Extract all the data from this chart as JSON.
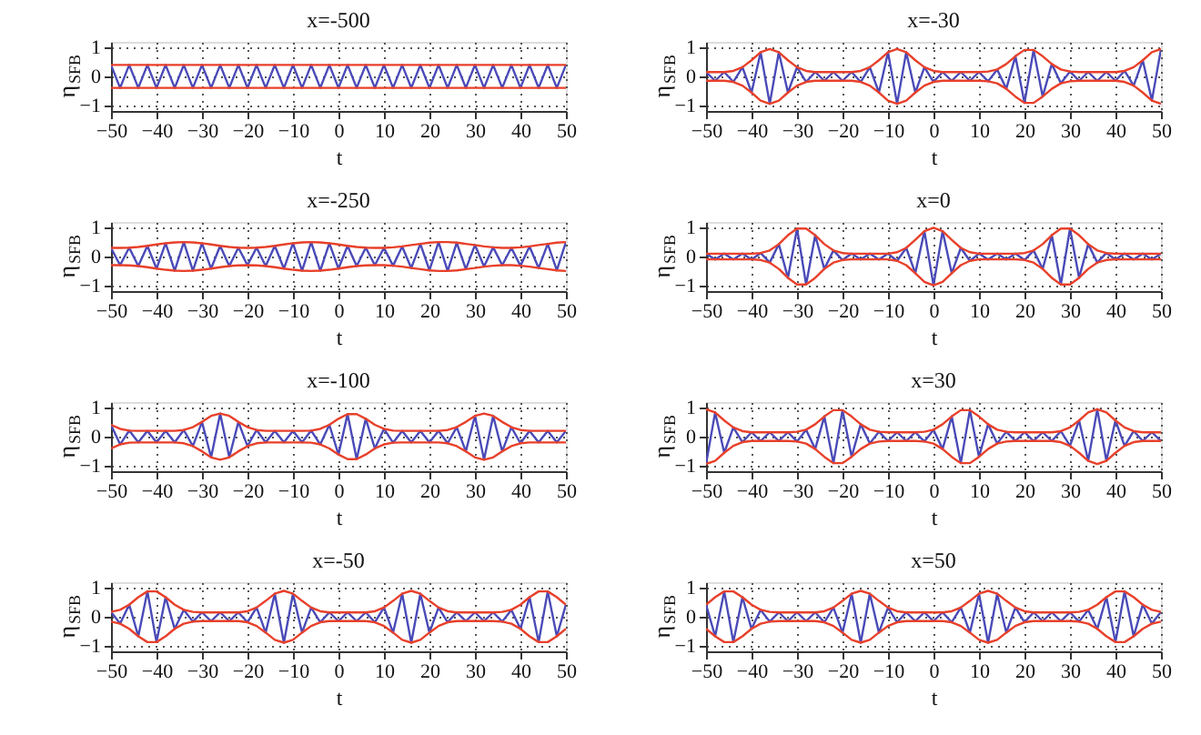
{
  "chart_data": [
    {
      "type": "line",
      "title": "x=-500",
      "xlabel": "t",
      "ylabel": "η$_{SFB}$",
      "xlim": [
        -50,
        50
      ],
      "xticks": [
        -50,
        -40,
        -30,
        -20,
        -10,
        0,
        10,
        20,
        30,
        40,
        50
      ],
      "ylim": [
        -1.2,
        1.2
      ],
      "yticks": [
        -1,
        0,
        1
      ],
      "grid": true,
      "legend": false,
      "x": [
        -50,
        -48,
        -46,
        -44,
        -42,
        -40,
        -38,
        -36,
        -34,
        -32,
        -30,
        -28,
        -26,
        -24,
        -22,
        -20,
        -18,
        -16,
        -14,
        -12,
        -10,
        -8,
        -6,
        -4,
        -2,
        0,
        2,
        4,
        6,
        8,
        10,
        12,
        14,
        16,
        18,
        20,
        22,
        24,
        26,
        28,
        30,
        32,
        34,
        36,
        38,
        40,
        42,
        44,
        46,
        48,
        50
      ],
      "series": [
        {
          "color": "#4a4ab8",
          "values": [
            0.4,
            -0.4,
            0.4,
            -0.4,
            0.4,
            -0.4,
            0.4,
            -0.4,
            0.4,
            -0.4,
            0.4,
            -0.4,
            0.4,
            -0.4,
            0.4,
            -0.4,
            0.4,
            -0.4,
            0.4,
            -0.4,
            0.4,
            -0.4,
            0.4,
            -0.4,
            0.4,
            -0.4,
            0.4,
            -0.4,
            0.4,
            -0.4,
            0.4,
            -0.4,
            0.4,
            -0.4,
            0.4,
            -0.4,
            0.4,
            -0.4,
            0.4,
            -0.4,
            0.4,
            -0.4,
            0.4,
            -0.4,
            0.4,
            -0.4,
            0.4,
            -0.4,
            0.4,
            -0.4,
            0.4
          ]
        },
        {
          "color": "#e8402a",
          "values": [
            0.4,
            0.4,
            0.4,
            0.4,
            0.4,
            0.4,
            0.4,
            0.4,
            0.4,
            0.4,
            0.4,
            0.4,
            0.4,
            0.4,
            0.4,
            0.4,
            0.4,
            0.4,
            0.4,
            0.4,
            0.4,
            0.4,
            0.4,
            0.4,
            0.4,
            0.4,
            0.4,
            0.4,
            0.4,
            0.4,
            0.4,
            0.4,
            0.4,
            0.4,
            0.4,
            0.4,
            0.4,
            0.4,
            0.4,
            0.4,
            0.4,
            0.4,
            0.4,
            0.4,
            0.4,
            0.4,
            0.4,
            0.4,
            0.4,
            0.4,
            0.4
          ]
        },
        {
          "color": "#e8402a",
          "values": [
            -0.4,
            -0.4,
            -0.4,
            -0.4,
            -0.4,
            -0.4,
            -0.4,
            -0.4,
            -0.4,
            -0.4,
            -0.4,
            -0.4,
            -0.4,
            -0.4,
            -0.4,
            -0.4,
            -0.4,
            -0.4,
            -0.4,
            -0.4,
            -0.4,
            -0.4,
            -0.4,
            -0.4,
            -0.4,
            -0.4,
            -0.4,
            -0.4,
            -0.4,
            -0.4,
            -0.4,
            -0.4,
            -0.4,
            -0.4,
            -0.4,
            -0.4,
            -0.4,
            -0.4,
            -0.4,
            -0.4,
            -0.4,
            -0.4,
            -0.4,
            -0.4,
            -0.4,
            -0.4,
            -0.4,
            -0.4,
            -0.4,
            -0.4,
            -0.4
          ]
        }
      ]
    },
    {
      "type": "line",
      "title": "x=-30",
      "xlabel": "t",
      "ylabel": "η$_{SFB}$",
      "xlim": [
        -50,
        50
      ],
      "xticks": [
        -50,
        -40,
        -30,
        -20,
        -10,
        0,
        10,
        20,
        30,
        40,
        50
      ],
      "ylim": [
        -1.2,
        1.2
      ],
      "yticks": [
        -1,
        0,
        1
      ],
      "grid": true,
      "legend": false,
      "x": [
        -50,
        -48,
        -46,
        -44,
        -42,
        -40,
        -38,
        -36,
        -34,
        -32,
        -30,
        -28,
        -26,
        -24,
        -22,
        -20,
        -18,
        -16,
        -14,
        -12,
        -10,
        -8,
        -6,
        -4,
        -2,
        0,
        2,
        4,
        6,
        8,
        10,
        12,
        14,
        16,
        18,
        20,
        22,
        24,
        26,
        28,
        30,
        32,
        34,
        36,
        38,
        40,
        42,
        44,
        46,
        48,
        50
      ],
      "series": [
        {
          "color": "#4a4ab8",
          "values": [
            0.15,
            -0.15,
            0.15,
            -0.19,
            0.32,
            -0.56,
            0.84,
            -0.95,
            0.84,
            -0.56,
            0.32,
            -0.19,
            0.15,
            -0.15,
            0.15,
            -0.15,
            0.15,
            -0.19,
            0.32,
            -0.56,
            0.84,
            -0.95,
            0.84,
            -0.56,
            0.32,
            -0.19,
            0.15,
            -0.15,
            0.15,
            -0.15,
            0.15,
            -0.17,
            0.24,
            -0.43,
            0.7,
            -0.92,
            0.92,
            -0.7,
            0.43,
            -0.24,
            0.17,
            -0.15,
            0.15,
            -0.15,
            0.15,
            -0.15,
            0.19,
            -0.32,
            0.56,
            -0.84,
            0.95
          ]
        },
        {
          "color": "#e8402a",
          "values": [
            0.15,
            0.15,
            0.15,
            0.19,
            0.32,
            0.56,
            0.84,
            0.95,
            0.84,
            0.56,
            0.32,
            0.19,
            0.15,
            0.15,
            0.15,
            0.15,
            0.15,
            0.19,
            0.32,
            0.56,
            0.84,
            0.95,
            0.84,
            0.56,
            0.32,
            0.19,
            0.15,
            0.15,
            0.15,
            0.15,
            0.15,
            0.17,
            0.24,
            0.43,
            0.7,
            0.92,
            0.92,
            0.7,
            0.43,
            0.24,
            0.17,
            0.15,
            0.15,
            0.15,
            0.15,
            0.15,
            0.19,
            0.32,
            0.56,
            0.84,
            0.95
          ]
        },
        {
          "color": "#e8402a",
          "values": [
            -0.15,
            -0.15,
            -0.15,
            -0.19,
            -0.32,
            -0.56,
            -0.84,
            -0.95,
            -0.84,
            -0.56,
            -0.32,
            -0.19,
            -0.15,
            -0.15,
            -0.15,
            -0.15,
            -0.15,
            -0.19,
            -0.32,
            -0.56,
            -0.84,
            -0.95,
            -0.84,
            -0.56,
            -0.32,
            -0.19,
            -0.15,
            -0.15,
            -0.15,
            -0.15,
            -0.15,
            -0.17,
            -0.24,
            -0.43,
            -0.7,
            -0.92,
            -0.92,
            -0.7,
            -0.43,
            -0.24,
            -0.17,
            -0.15,
            -0.15,
            -0.15,
            -0.15,
            -0.15,
            -0.19,
            -0.32,
            -0.56,
            -0.84,
            -0.95
          ]
        }
      ]
    },
    {
      "type": "line",
      "title": "x=-250",
      "xlabel": "t",
      "ylabel": "η$_{SFB}$",
      "xlim": [
        -50,
        50
      ],
      "xticks": [
        -50,
        -40,
        -30,
        -20,
        -10,
        0,
        10,
        20,
        30,
        40,
        50
      ],
      "ylim": [
        -1.2,
        1.2
      ],
      "yticks": [
        -1,
        0,
        1
      ],
      "grid": true,
      "legend": false,
      "x": [
        -50,
        -48,
        -46,
        -44,
        -42,
        -40,
        -38,
        -36,
        -34,
        -32,
        -30,
        -28,
        -26,
        -24,
        -22,
        -20,
        -18,
        -16,
        -14,
        -12,
        -10,
        -8,
        -6,
        -4,
        -2,
        0,
        2,
        4,
        6,
        8,
        10,
        12,
        14,
        16,
        18,
        20,
        22,
        24,
        26,
        28,
        30,
        32,
        34,
        36,
        38,
        40,
        42,
        44,
        46,
        48,
        50
      ],
      "series": [
        {
          "color": "#4a4ab8",
          "values": [
            0.3,
            -0.3,
            0.31,
            -0.33,
            0.37,
            -0.42,
            0.46,
            -0.49,
            0.5,
            -0.49,
            0.46,
            -0.42,
            0.37,
            -0.33,
            0.31,
            -0.3,
            0.31,
            -0.33,
            0.37,
            -0.42,
            0.46,
            -0.49,
            0.5,
            -0.49,
            0.46,
            -0.42,
            0.37,
            -0.33,
            0.31,
            -0.3,
            0.3,
            -0.32,
            0.35,
            -0.4,
            0.44,
            -0.48,
            0.5,
            -0.5,
            0.48,
            -0.44,
            0.4,
            -0.35,
            0.32,
            -0.3,
            0.3,
            -0.32,
            0.35,
            -0.4,
            0.44,
            -0.48,
            0.5
          ]
        },
        {
          "color": "#e8402a",
          "values": [
            0.3,
            0.3,
            0.31,
            0.33,
            0.37,
            0.42,
            0.46,
            0.49,
            0.5,
            0.49,
            0.46,
            0.42,
            0.37,
            0.33,
            0.31,
            0.3,
            0.31,
            0.33,
            0.37,
            0.42,
            0.46,
            0.49,
            0.5,
            0.49,
            0.46,
            0.42,
            0.37,
            0.33,
            0.31,
            0.3,
            0.3,
            0.32,
            0.35,
            0.4,
            0.44,
            0.48,
            0.5,
            0.5,
            0.48,
            0.44,
            0.4,
            0.35,
            0.32,
            0.3,
            0.3,
            0.32,
            0.35,
            0.4,
            0.44,
            0.48,
            0.5
          ]
        },
        {
          "color": "#e8402a",
          "values": [
            -0.3,
            -0.3,
            -0.31,
            -0.33,
            -0.37,
            -0.42,
            -0.46,
            -0.49,
            -0.5,
            -0.49,
            -0.46,
            -0.42,
            -0.37,
            -0.33,
            -0.31,
            -0.3,
            -0.31,
            -0.33,
            -0.37,
            -0.42,
            -0.46,
            -0.49,
            -0.5,
            -0.49,
            -0.46,
            -0.42,
            -0.37,
            -0.33,
            -0.31,
            -0.3,
            -0.3,
            -0.32,
            -0.35,
            -0.4,
            -0.44,
            -0.48,
            -0.5,
            -0.5,
            -0.48,
            -0.44,
            -0.4,
            -0.35,
            -0.32,
            -0.3,
            -0.3,
            -0.32,
            -0.35,
            -0.4,
            -0.44,
            -0.48,
            -0.5
          ]
        }
      ]
    },
    {
      "type": "line",
      "title": "x=0",
      "xlabel": "t",
      "ylabel": "η$_{SFB}$",
      "xlim": [
        -50,
        50
      ],
      "xticks": [
        -50,
        -40,
        -30,
        -20,
        -10,
        0,
        10,
        20,
        30,
        40,
        50
      ],
      "ylim": [
        -1.2,
        1.2
      ],
      "yticks": [
        -1,
        0,
        1
      ],
      "grid": true,
      "legend": false,
      "x": [
        -50,
        -48,
        -46,
        -44,
        -42,
        -40,
        -38,
        -36,
        -34,
        -32,
        -30,
        -28,
        -26,
        -24,
        -22,
        -20,
        -18,
        -16,
        -14,
        -12,
        -10,
        -8,
        -6,
        -4,
        -2,
        0,
        2,
        4,
        6,
        8,
        10,
        12,
        14,
        16,
        18,
        20,
        22,
        24,
        26,
        28,
        30,
        32,
        34,
        36,
        38,
        40,
        42,
        44,
        46,
        48,
        50
      ],
      "series": [
        {
          "color": "#4a4ab8",
          "values": [
            0.1,
            -0.1,
            0.1,
            -0.1,
            0.1,
            -0.1,
            0.12,
            -0.21,
            0.43,
            -0.74,
            0.97,
            -0.97,
            0.74,
            -0.43,
            0.21,
            -0.12,
            0.1,
            -0.1,
            0.1,
            -0.1,
            0.1,
            -0.15,
            0.3,
            -0.58,
            0.88,
            -1.0,
            0.88,
            -0.58,
            0.3,
            -0.15,
            0.1,
            -0.1,
            0.1,
            -0.1,
            0.1,
            -0.12,
            0.21,
            -0.43,
            0.74,
            -0.97,
            0.97,
            -0.74,
            0.43,
            -0.21,
            0.12,
            -0.1,
            0.1,
            -0.1,
            0.1,
            -0.1,
            0.1
          ]
        },
        {
          "color": "#e8402a",
          "values": [
            0.1,
            0.1,
            0.1,
            0.1,
            0.1,
            0.1,
            0.12,
            0.21,
            0.43,
            0.74,
            0.97,
            0.97,
            0.74,
            0.43,
            0.21,
            0.12,
            0.1,
            0.1,
            0.1,
            0.1,
            0.1,
            0.15,
            0.3,
            0.58,
            0.88,
            1.0,
            0.88,
            0.58,
            0.3,
            0.15,
            0.1,
            0.1,
            0.1,
            0.1,
            0.1,
            0.12,
            0.21,
            0.43,
            0.74,
            0.97,
            0.97,
            0.74,
            0.43,
            0.21,
            0.12,
            0.1,
            0.1,
            0.1,
            0.1,
            0.1,
            0.1
          ]
        },
        {
          "color": "#e8402a",
          "values": [
            -0.1,
            -0.1,
            -0.1,
            -0.1,
            -0.1,
            -0.1,
            -0.12,
            -0.21,
            -0.43,
            -0.74,
            -0.97,
            -0.97,
            -0.74,
            -0.43,
            -0.21,
            -0.12,
            -0.1,
            -0.1,
            -0.1,
            -0.1,
            -0.1,
            -0.15,
            -0.3,
            -0.58,
            -0.88,
            -1.0,
            -0.88,
            -0.58,
            -0.3,
            -0.15,
            -0.1,
            -0.1,
            -0.1,
            -0.1,
            -0.1,
            -0.12,
            -0.21,
            -0.43,
            -0.74,
            -0.97,
            -0.97,
            -0.74,
            -0.43,
            -0.21,
            -0.12,
            -0.1,
            -0.1,
            -0.1,
            -0.1,
            -0.1,
            -0.1
          ]
        }
      ]
    },
    {
      "type": "line",
      "title": "x=-100",
      "xlabel": "t",
      "ylabel": "η$_{SFB}$",
      "xlim": [
        -50,
        50
      ],
      "xticks": [
        -50,
        -40,
        -30,
        -20,
        -10,
        0,
        10,
        20,
        30,
        40,
        50
      ],
      "ylim": [
        -1.2,
        1.2
      ],
      "yticks": [
        -1,
        0,
        1
      ],
      "grid": true,
      "legend": false,
      "x": [
        -50,
        -48,
        -46,
        -44,
        -42,
        -40,
        -38,
        -36,
        -34,
        -32,
        -30,
        -28,
        -26,
        -24,
        -22,
        -20,
        -18,
        -16,
        -14,
        -12,
        -10,
        -8,
        -6,
        -4,
        -2,
        0,
        2,
        4,
        6,
        8,
        10,
        12,
        14,
        16,
        18,
        20,
        22,
        24,
        26,
        28,
        30,
        32,
        34,
        36,
        38,
        40,
        42,
        44,
        46,
        48,
        50
      ],
      "series": [
        {
          "color": "#4a4ab8",
          "values": [
            0.41,
            -0.27,
            0.21,
            -0.2,
            0.2,
            -0.2,
            0.2,
            -0.2,
            0.23,
            -0.33,
            0.51,
            -0.72,
            0.8,
            -0.72,
            0.51,
            -0.33,
            0.23,
            -0.2,
            0.2,
            -0.2,
            0.2,
            -0.2,
            0.21,
            -0.27,
            0.41,
            -0.62,
            0.78,
            -0.78,
            0.62,
            -0.41,
            0.27,
            -0.21,
            0.2,
            -0.2,
            0.2,
            -0.2,
            0.2,
            -0.23,
            0.33,
            -0.51,
            0.72,
            -0.8,
            0.72,
            -0.51,
            0.33,
            -0.23,
            0.2,
            -0.2,
            0.2,
            -0.2,
            0.2
          ]
        },
        {
          "color": "#e8402a",
          "values": [
            0.41,
            0.27,
            0.21,
            0.2,
            0.2,
            0.2,
            0.2,
            0.2,
            0.23,
            0.33,
            0.51,
            0.72,
            0.8,
            0.72,
            0.51,
            0.33,
            0.23,
            0.2,
            0.2,
            0.2,
            0.2,
            0.2,
            0.21,
            0.27,
            0.41,
            0.62,
            0.78,
            0.78,
            0.62,
            0.41,
            0.27,
            0.21,
            0.2,
            0.2,
            0.2,
            0.2,
            0.2,
            0.23,
            0.33,
            0.51,
            0.72,
            0.8,
            0.72,
            0.51,
            0.33,
            0.23,
            0.2,
            0.2,
            0.2,
            0.2,
            0.2
          ]
        },
        {
          "color": "#e8402a",
          "values": [
            -0.41,
            -0.27,
            -0.21,
            -0.2,
            -0.2,
            -0.2,
            -0.2,
            -0.2,
            -0.23,
            -0.33,
            -0.51,
            -0.72,
            -0.8,
            -0.72,
            -0.51,
            -0.33,
            -0.23,
            -0.2,
            -0.2,
            -0.2,
            -0.2,
            -0.2,
            -0.21,
            -0.27,
            -0.41,
            -0.62,
            -0.78,
            -0.78,
            -0.62,
            -0.41,
            -0.27,
            -0.21,
            -0.2,
            -0.2,
            -0.2,
            -0.2,
            -0.2,
            -0.23,
            -0.33,
            -0.51,
            -0.72,
            -0.8,
            -0.72,
            -0.51,
            -0.33,
            -0.23,
            -0.2,
            -0.2,
            -0.2,
            -0.2,
            -0.2
          ]
        }
      ]
    },
    {
      "type": "line",
      "title": "x=30",
      "xlabel": "t",
      "ylabel": "η$_{SFB}$",
      "xlim": [
        -50,
        50
      ],
      "xticks": [
        -50,
        -40,
        -30,
        -20,
        -10,
        0,
        10,
        20,
        30,
        40,
        50
      ],
      "ylim": [
        -1.2,
        1.2
      ],
      "yticks": [
        -1,
        0,
        1
      ],
      "grid": true,
      "legend": false,
      "x": [
        -50,
        -48,
        -46,
        -44,
        -42,
        -40,
        -38,
        -36,
        -34,
        -32,
        -30,
        -28,
        -26,
        -24,
        -22,
        -20,
        -18,
        -16,
        -14,
        -12,
        -10,
        -8,
        -6,
        -4,
        -2,
        0,
        2,
        4,
        6,
        8,
        10,
        12,
        14,
        16,
        18,
        20,
        22,
        24,
        26,
        28,
        30,
        32,
        34,
        36,
        38,
        40,
        42,
        44,
        46,
        48,
        50
      ],
      "series": [
        {
          "color": "#4a4ab8",
          "values": [
            -0.95,
            0.84,
            -0.56,
            0.32,
            -0.19,
            0.15,
            -0.15,
            0.15,
            -0.15,
            0.15,
            -0.17,
            0.24,
            -0.43,
            0.7,
            -0.92,
            0.92,
            -0.7,
            0.43,
            -0.24,
            0.17,
            -0.15,
            0.15,
            -0.15,
            0.15,
            -0.17,
            0.24,
            -0.43,
            0.7,
            -0.92,
            0.92,
            -0.7,
            0.43,
            -0.24,
            0.17,
            -0.15,
            0.15,
            -0.15,
            0.15,
            -0.15,
            0.19,
            -0.32,
            0.56,
            -0.84,
            0.95,
            -0.84,
            0.56,
            -0.32,
            0.19,
            -0.15,
            0.15,
            -0.15
          ]
        },
        {
          "color": "#e8402a",
          "values": [
            0.95,
            0.84,
            0.56,
            0.32,
            0.19,
            0.15,
            0.15,
            0.15,
            0.15,
            0.15,
            0.17,
            0.24,
            0.43,
            0.7,
            0.92,
            0.92,
            0.7,
            0.43,
            0.24,
            0.17,
            0.15,
            0.15,
            0.15,
            0.15,
            0.17,
            0.24,
            0.43,
            0.7,
            0.92,
            0.92,
            0.7,
            0.43,
            0.24,
            0.17,
            0.15,
            0.15,
            0.15,
            0.15,
            0.15,
            0.19,
            0.32,
            0.56,
            0.84,
            0.95,
            0.84,
            0.56,
            0.32,
            0.19,
            0.15,
            0.15,
            0.15
          ]
        },
        {
          "color": "#e8402a",
          "values": [
            -0.95,
            -0.84,
            -0.56,
            -0.32,
            -0.19,
            -0.15,
            -0.15,
            -0.15,
            -0.15,
            -0.15,
            -0.17,
            -0.24,
            -0.43,
            -0.7,
            -0.92,
            -0.92,
            -0.7,
            -0.43,
            -0.24,
            -0.17,
            -0.15,
            -0.15,
            -0.15,
            -0.15,
            -0.17,
            -0.24,
            -0.43,
            -0.7,
            -0.92,
            -0.92,
            -0.7,
            -0.43,
            -0.24,
            -0.17,
            -0.15,
            -0.15,
            -0.15,
            -0.15,
            -0.15,
            -0.19,
            -0.32,
            -0.56,
            -0.84,
            -0.95,
            -0.84,
            -0.56,
            -0.32,
            -0.19,
            -0.15,
            -0.15,
            -0.15
          ]
        }
      ]
    },
    {
      "type": "line",
      "title": "x=-50",
      "xlabel": "t",
      "ylabel": "η$_{SFB}$",
      "xlim": [
        -50,
        50
      ],
      "xticks": [
        -50,
        -40,
        -30,
        -20,
        -10,
        0,
        10,
        20,
        30,
        40,
        50
      ],
      "ylim": [
        -1.2,
        1.2
      ],
      "yticks": [
        -1,
        0,
        1
      ],
      "grid": true,
      "legend": false,
      "x": [
        -50,
        -48,
        -46,
        -44,
        -42,
        -40,
        -38,
        -36,
        -34,
        -32,
        -30,
        -28,
        -26,
        -24,
        -22,
        -20,
        -18,
        -16,
        -14,
        -12,
        -10,
        -8,
        -6,
        -4,
        -2,
        0,
        2,
        4,
        6,
        8,
        10,
        12,
        14,
        16,
        18,
        20,
        22,
        24,
        26,
        28,
        30,
        32,
        34,
        36,
        38,
        40,
        42,
        44,
        46,
        48,
        50
      ],
      "series": [
        {
          "color": "#4a4ab8",
          "values": [
            0.17,
            -0.24,
            0.42,
            -0.68,
            0.88,
            -0.88,
            0.68,
            -0.42,
            0.24,
            -0.17,
            0.15,
            -0.15,
            0.15,
            -0.15,
            0.15,
            -0.19,
            0.32,
            -0.55,
            0.8,
            -0.9,
            0.8,
            -0.55,
            0.32,
            -0.19,
            0.15,
            -0.15,
            0.15,
            -0.15,
            0.15,
            -0.19,
            0.32,
            -0.55,
            0.8,
            -0.9,
            0.8,
            -0.55,
            0.32,
            -0.19,
            0.15,
            -0.15,
            0.15,
            -0.15,
            0.15,
            -0.17,
            0.24,
            -0.42,
            0.68,
            -0.88,
            0.88,
            -0.68,
            0.42
          ]
        },
        {
          "color": "#e8402a",
          "values": [
            0.17,
            0.24,
            0.42,
            0.68,
            0.88,
            0.88,
            0.68,
            0.42,
            0.24,
            0.17,
            0.15,
            0.15,
            0.15,
            0.15,
            0.15,
            0.19,
            0.32,
            0.55,
            0.8,
            0.9,
            0.8,
            0.55,
            0.32,
            0.19,
            0.15,
            0.15,
            0.15,
            0.15,
            0.15,
            0.19,
            0.32,
            0.55,
            0.8,
            0.9,
            0.8,
            0.55,
            0.32,
            0.19,
            0.15,
            0.15,
            0.15,
            0.15,
            0.15,
            0.17,
            0.24,
            0.42,
            0.68,
            0.88,
            0.88,
            0.68,
            0.42
          ]
        },
        {
          "color": "#e8402a",
          "values": [
            -0.17,
            -0.24,
            -0.42,
            -0.68,
            -0.88,
            -0.88,
            -0.68,
            -0.42,
            -0.24,
            -0.17,
            -0.15,
            -0.15,
            -0.15,
            -0.15,
            -0.15,
            -0.19,
            -0.32,
            -0.55,
            -0.8,
            -0.9,
            -0.8,
            -0.55,
            -0.32,
            -0.19,
            -0.15,
            -0.15,
            -0.15,
            -0.15,
            -0.15,
            -0.19,
            -0.32,
            -0.55,
            -0.8,
            -0.9,
            -0.8,
            -0.55,
            -0.32,
            -0.19,
            -0.15,
            -0.15,
            -0.15,
            -0.15,
            -0.15,
            -0.17,
            -0.24,
            -0.42,
            -0.68,
            -0.88,
            -0.88,
            -0.68,
            -0.42
          ]
        }
      ]
    },
    {
      "type": "line",
      "title": "x=50",
      "xlabel": "t",
      "ylabel": "η$_{SFB}$",
      "xlim": [
        -50,
        50
      ],
      "xticks": [
        -50,
        -40,
        -30,
        -20,
        -10,
        0,
        10,
        20,
        30,
        40,
        50
      ],
      "ylim": [
        -1.2,
        1.2
      ],
      "yticks": [
        -1,
        0,
        1
      ],
      "grid": true,
      "legend": false,
      "x": [
        -50,
        -48,
        -46,
        -44,
        -42,
        -40,
        -38,
        -36,
        -34,
        -32,
        -30,
        -28,
        -26,
        -24,
        -22,
        -20,
        -18,
        -16,
        -14,
        -12,
        -10,
        -8,
        -6,
        -4,
        -2,
        0,
        2,
        4,
        6,
        8,
        10,
        12,
        14,
        16,
        18,
        20,
        22,
        24,
        26,
        28,
        30,
        32,
        34,
        36,
        38,
        40,
        42,
        44,
        46,
        48,
        50
      ],
      "series": [
        {
          "color": "#4a4ab8",
          "values": [
            0.42,
            -0.68,
            0.88,
            -0.88,
            0.68,
            -0.42,
            0.24,
            -0.17,
            0.15,
            -0.15,
            0.15,
            -0.15,
            0.15,
            -0.19,
            0.32,
            -0.55,
            0.8,
            -0.9,
            0.8,
            -0.55,
            0.32,
            -0.19,
            0.15,
            -0.15,
            0.15,
            -0.15,
            0.15,
            -0.19,
            0.32,
            -0.55,
            0.8,
            -0.9,
            0.8,
            -0.55,
            0.32,
            -0.19,
            0.15,
            -0.15,
            0.15,
            -0.15,
            0.15,
            -0.17,
            0.24,
            -0.42,
            0.68,
            -0.88,
            0.88,
            -0.68,
            0.42,
            -0.24,
            0.17
          ]
        },
        {
          "color": "#e8402a",
          "values": [
            0.42,
            0.68,
            0.88,
            0.88,
            0.68,
            0.42,
            0.24,
            0.17,
            0.15,
            0.15,
            0.15,
            0.15,
            0.15,
            0.19,
            0.32,
            0.55,
            0.8,
            0.9,
            0.8,
            0.55,
            0.32,
            0.19,
            0.15,
            0.15,
            0.15,
            0.15,
            0.15,
            0.19,
            0.32,
            0.55,
            0.8,
            0.9,
            0.8,
            0.55,
            0.32,
            0.19,
            0.15,
            0.15,
            0.15,
            0.15,
            0.15,
            0.17,
            0.24,
            0.42,
            0.68,
            0.88,
            0.88,
            0.68,
            0.42,
            0.24,
            0.17
          ]
        },
        {
          "color": "#e8402a",
          "values": [
            -0.42,
            -0.68,
            -0.88,
            -0.88,
            -0.68,
            -0.42,
            -0.24,
            -0.17,
            -0.15,
            -0.15,
            -0.15,
            -0.15,
            -0.15,
            -0.19,
            -0.32,
            -0.55,
            -0.8,
            -0.9,
            -0.8,
            -0.55,
            -0.32,
            -0.19,
            -0.15,
            -0.15,
            -0.15,
            -0.15,
            -0.15,
            -0.19,
            -0.32,
            -0.55,
            -0.8,
            -0.9,
            -0.8,
            -0.55,
            -0.32,
            -0.19,
            -0.15,
            -0.15,
            -0.15,
            -0.15,
            -0.15,
            -0.17,
            -0.24,
            -0.42,
            -0.68,
            -0.88,
            -0.88,
            -0.68,
            -0.42,
            -0.24,
            -0.17
          ]
        }
      ]
    }
  ]
}
